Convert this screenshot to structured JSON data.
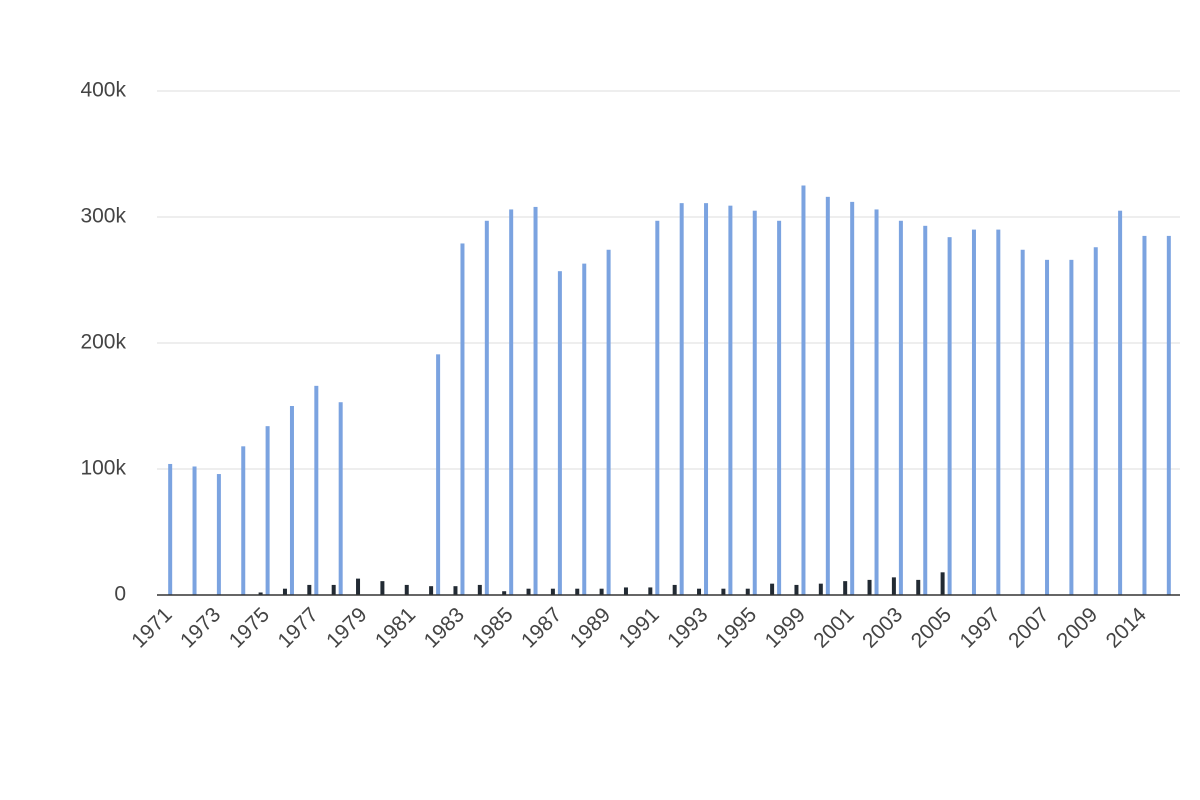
{
  "chart_data": {
    "type": "bar",
    "categories": [
      "1971",
      null,
      "1973",
      null,
      "1975",
      null,
      "1977",
      null,
      "1979",
      null,
      "1981",
      null,
      "1983",
      null,
      "1985",
      null,
      "1987",
      null,
      "1989",
      null,
      "1991",
      null,
      "1993",
      null,
      "1995",
      null,
      "1999",
      null,
      "2001",
      null,
      "2003",
      null,
      "2005",
      null,
      "1997",
      null,
      "2007",
      null,
      "2009",
      null,
      "2014",
      null
    ],
    "series": [
      {
        "color": "#7ba3e0",
        "values": [
          104000,
          102000,
          96000,
          118000,
          134000,
          150000,
          166000,
          153000,
          0,
          0,
          0,
          191000,
          279000,
          297000,
          306000,
          308000,
          257000,
          263000,
          274000,
          0,
          297000,
          311000,
          311000,
          309000,
          305000,
          297000,
          325000,
          316000,
          312000,
          306000,
          297000,
          293000,
          284000,
          290000,
          290000,
          274000,
          266000,
          266000,
          276000,
          305000,
          285000,
          285000
        ]
      },
      {
        "color": "#222a33",
        "values": [
          0,
          0,
          0,
          0,
          2000,
          5000,
          8000,
          8000,
          13000,
          11000,
          8000,
          7000,
          7000,
          8000,
          3000,
          5000,
          5000,
          5000,
          5000,
          6000,
          6000,
          8000,
          5000,
          5000,
          5000,
          9000,
          8000,
          9000,
          11000,
          12000,
          14000,
          12000,
          18000,
          0,
          0,
          0,
          0,
          0,
          0,
          0,
          0,
          0
        ]
      }
    ],
    "ylim": [
      0,
      400000
    ],
    "yticks": [
      0,
      {
        "value": 100000,
        "label": "100k"
      },
      {
        "value": 200000,
        "label": "200k"
      },
      {
        "value": 300000,
        "label": "300k"
      },
      {
        "value": 400000,
        "label": "400k"
      }
    ],
    "grid": true
  }
}
